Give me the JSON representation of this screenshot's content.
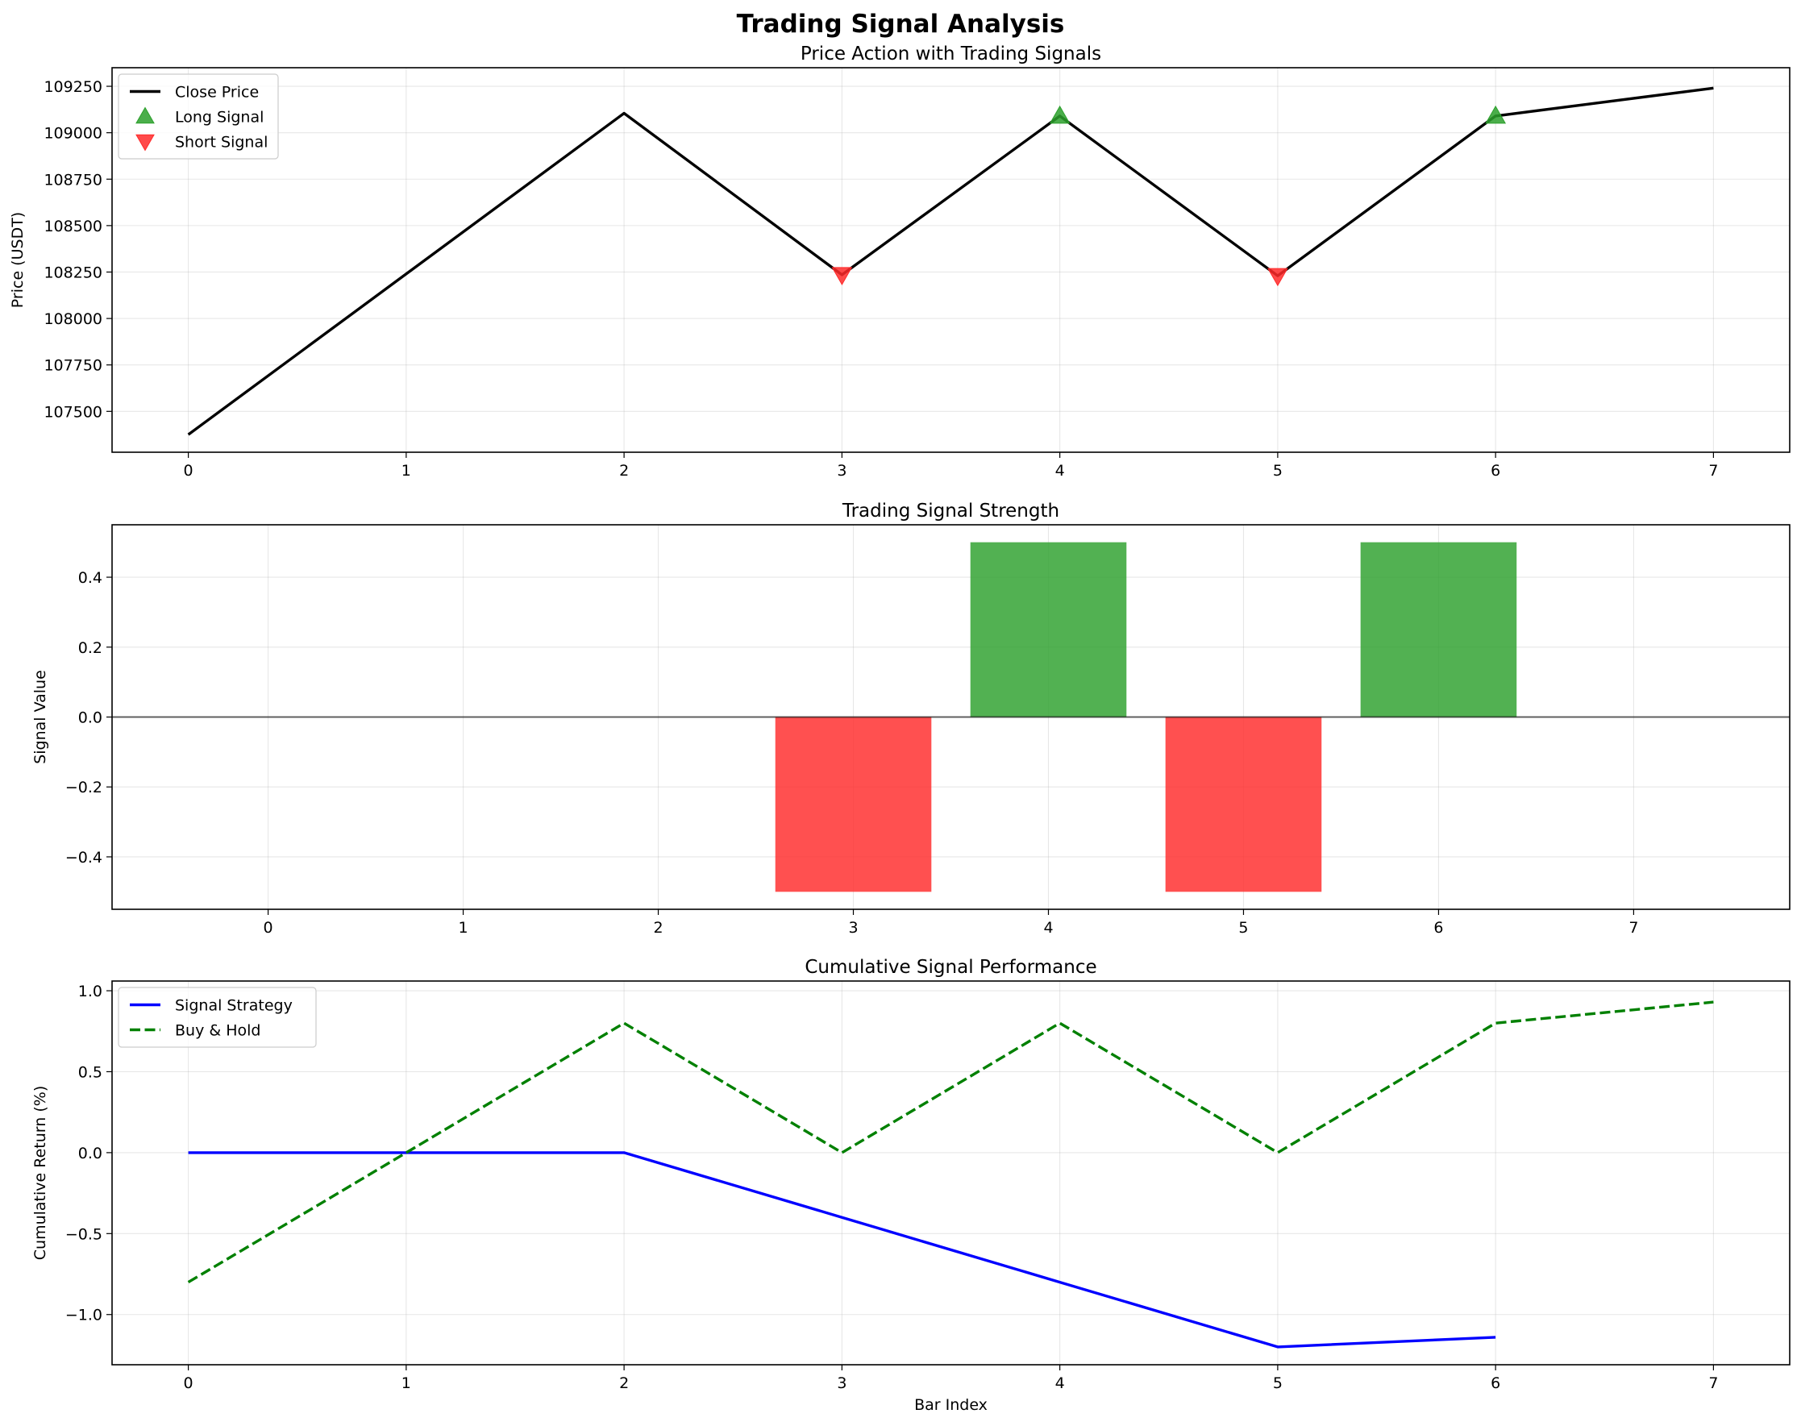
{
  "figure": {
    "title": "Trading Signal Analysis"
  },
  "chart_data": [
    {
      "type": "line",
      "title": "Price Action with Trading Signals",
      "xlabel": "",
      "ylabel": "Price (USDT)",
      "xlim": [
        -0.35,
        7.35
      ],
      "ylim": [
        107280,
        109350
      ],
      "xticks": [
        0,
        1,
        2,
        3,
        4,
        5,
        6,
        7
      ],
      "yticks": [
        107500,
        107750,
        108000,
        108250,
        108500,
        108750,
        109000,
        109250
      ],
      "grid": true,
      "legend_position": "upper-left",
      "series": [
        {
          "name": "Close Price",
          "kind": "line",
          "color": "#000000",
          "x": [
            0,
            1,
            2,
            3,
            4,
            5,
            6,
            7
          ],
          "y": [
            107375,
            108240,
            109105,
            108235,
            109090,
            108230,
            109090,
            109240
          ]
        },
        {
          "name": "Long Signal",
          "kind": "marker-up",
          "color": "#2ca02c",
          "x": [
            4,
            6
          ],
          "y": [
            109090,
            109090
          ]
        },
        {
          "name": "Short Signal",
          "kind": "marker-down",
          "color": "#ff2a2a",
          "x": [
            3,
            5
          ],
          "y": [
            108235,
            108230
          ]
        }
      ]
    },
    {
      "type": "bar",
      "title": "Trading Signal Strength",
      "xlabel": "",
      "ylabel": "Signal Value",
      "xlim": [
        -0.8,
        7.8
      ],
      "ylim": [
        -0.55,
        0.55
      ],
      "xticks": [
        0,
        1,
        2,
        3,
        4,
        5,
        6,
        7
      ],
      "yticks": [
        -0.4,
        -0.2,
        0.0,
        0.2,
        0.4
      ],
      "ytick_labels": [
        "−0.4",
        "−0.2",
        "0.0",
        "0.2",
        "0.4"
      ],
      "grid": true,
      "baseline": 0,
      "bar_width": 0.8,
      "positive_color": "#2ca02c",
      "negative_color": "#ff2a2a",
      "x": [
        0,
        1,
        2,
        3,
        4,
        5,
        6,
        7
      ],
      "values": [
        0,
        0,
        0,
        -0.5,
        0.5,
        -0.5,
        0.5,
        0
      ]
    },
    {
      "type": "line",
      "title": "Cumulative Signal Performance",
      "xlabel": "Bar Index",
      "ylabel": "Cumulative Return (%)",
      "xlim": [
        -0.35,
        7.35
      ],
      "ylim": [
        -1.31,
        1.06
      ],
      "xticks": [
        0,
        1,
        2,
        3,
        4,
        5,
        6,
        7
      ],
      "yticks": [
        -1.0,
        -0.5,
        0.0,
        0.5,
        1.0
      ],
      "ytick_labels": [
        "−1.0",
        "−0.5",
        "0.0",
        "0.5",
        "1.0"
      ],
      "grid": true,
      "legend_position": "upper-left",
      "series": [
        {
          "name": "Signal Strategy",
          "kind": "line",
          "color": "#0000ff",
          "x": [
            0,
            1,
            2,
            3,
            4,
            5,
            6
          ],
          "y": [
            0,
            0,
            0,
            -0.4,
            -0.8,
            -1.2,
            -1.14
          ]
        },
        {
          "name": "Buy & Hold",
          "kind": "dashed",
          "color": "#008000",
          "x": [
            0,
            1,
            2,
            3,
            4,
            5,
            6,
            7
          ],
          "y": [
            -0.8,
            0.0,
            0.8,
            0.0,
            0.8,
            0.0,
            0.8,
            0.93
          ]
        }
      ]
    }
  ]
}
